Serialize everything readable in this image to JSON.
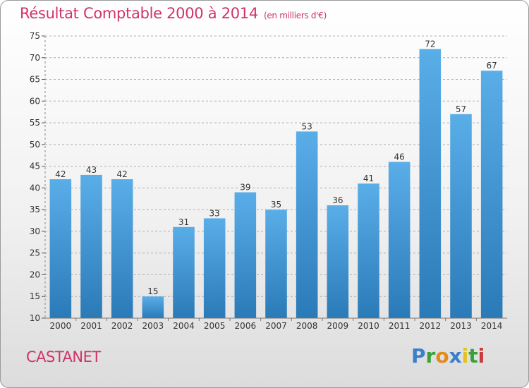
{
  "header": {
    "title": "Résultat Comptable 2000 à 2014",
    "subtitle": "(en milliers d'€)"
  },
  "commune": "CASTANET",
  "logo": {
    "letters": [
      {
        "ch": "P",
        "color": "#3a7fc8"
      },
      {
        "ch": "r",
        "color": "#3aa038"
      },
      {
        "ch": "o",
        "color": "#e38a1d"
      },
      {
        "ch": "x",
        "color": "#3a7fc8"
      },
      {
        "ch": "i",
        "color": "#e3c21d"
      },
      {
        "ch": "t",
        "color": "#3aa038"
      },
      {
        "ch": "i",
        "color": "#c93a3a"
      }
    ]
  },
  "colors": {
    "bar_top": "#5aaee8",
    "bar_bottom": "#2a7ab8",
    "grid": "#b0b0b0",
    "accent": "#d0336b"
  },
  "chart_data": {
    "type": "bar",
    "categories": [
      "2000",
      "2001",
      "2002",
      "2003",
      "2004",
      "2005",
      "2006",
      "2007",
      "2008",
      "2009",
      "2010",
      "2011",
      "2012",
      "2013",
      "2014"
    ],
    "values": [
      42,
      43,
      42,
      15,
      31,
      33,
      39,
      35,
      53,
      36,
      41,
      46,
      72,
      57,
      67
    ],
    "ylim": [
      10,
      75
    ],
    "yticks": [
      10,
      15,
      20,
      25,
      30,
      35,
      40,
      45,
      50,
      55,
      60,
      65,
      70,
      75
    ],
    "grid": "horizontal dashed",
    "legend": "none"
  }
}
